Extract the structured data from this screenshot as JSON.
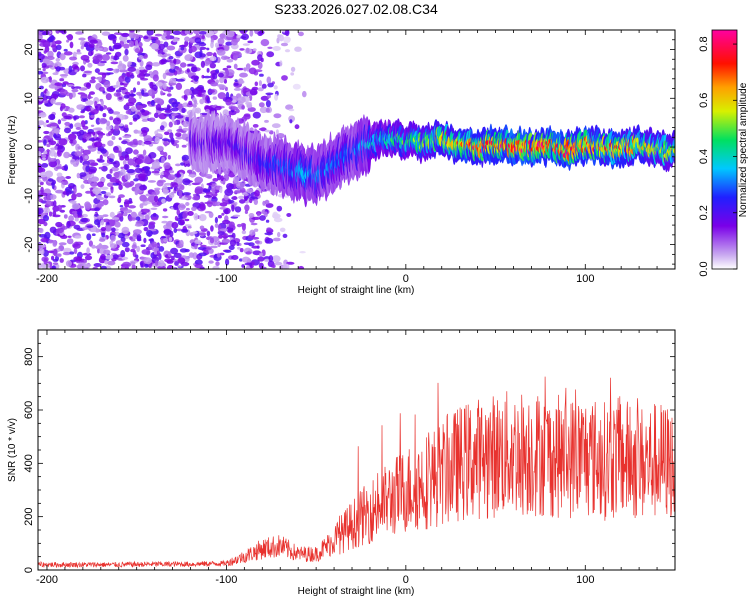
{
  "title": "S233.2026.027.02.08.C34",
  "colors": {
    "snr_line": "#e8322e",
    "frame": "#000000"
  },
  "chart_data": [
    {
      "type": "heatmap",
      "title": "S233.2026.027.02.08.C34",
      "xlabel": "Height of straight line (km)",
      "ylabel": "Frequency (Hz)",
      "xlim": [
        -205,
        150
      ],
      "ylim": [
        -25,
        24
      ],
      "x_ticks": [
        -200,
        -100,
        0,
        100
      ],
      "y_ticks": [
        -20,
        -10,
        0,
        10,
        20
      ],
      "colorbar": {
        "label": "Normalized spectral amplitude",
        "range": [
          0.0,
          0.85
        ],
        "ticks": [
          0.0,
          0.2,
          0.4,
          0.6,
          0.8
        ]
      },
      "signal_track": {
        "description": "Doppler frequency centroid of the occultation signal vs height",
        "heights": [
          -100,
          -90,
          -80,
          -70,
          -60,
          -50,
          -40,
          -30,
          -20,
          -10,
          0,
          10,
          20,
          30,
          40,
          50,
          60,
          70,
          80,
          90,
          100,
          110,
          120,
          130,
          140,
          150
        ],
        "frequency": [
          1,
          -1,
          -3,
          -4,
          -5,
          -6,
          -3,
          -1,
          1,
          2,
          1,
          1,
          2,
          0.5,
          0,
          0.5,
          0,
          0,
          0,
          -0.5,
          0.5,
          0,
          -0.5,
          0.5,
          -0.5,
          -1
        ],
        "peak_amplitude": [
          0.2,
          0.22,
          0.25,
          0.3,
          0.35,
          0.35,
          0.3,
          0.3,
          0.4,
          0.45,
          0.5,
          0.55,
          0.65,
          0.7,
          0.75,
          0.75,
          0.8,
          0.8,
          0.8,
          0.75,
          0.75,
          0.7,
          0.7,
          0.65,
          0.6,
          0.55
        ]
      }
    },
    {
      "type": "line",
      "xlabel": "Height of straight line (km)",
      "ylabel": "SNR (10 * v/v)",
      "xlim": [
        -205,
        150
      ],
      "ylim": [
        0,
        900
      ],
      "x_ticks": [
        -200,
        -100,
        0,
        100
      ],
      "y_ticks": [
        0,
        200,
        400,
        600,
        800
      ],
      "series": [
        {
          "name": "SNR",
          "x": [
            -205,
            -180,
            -160,
            -140,
            -120,
            -100,
            -90,
            -80,
            -70,
            -60,
            -50,
            -40,
            -30,
            -20,
            -10,
            0,
            10,
            20,
            30,
            40,
            50,
            60,
            70,
            80,
            90,
            100,
            110,
            120,
            130,
            140,
            150
          ],
          "y": [
            20,
            20,
            20,
            22,
            22,
            25,
            50,
            80,
            90,
            60,
            60,
            110,
            170,
            220,
            260,
            300,
            330,
            360,
            400,
            420,
            430,
            440,
            440,
            430,
            420,
            430,
            410,
            420,
            400,
            410,
            400
          ]
        }
      ]
    }
  ]
}
